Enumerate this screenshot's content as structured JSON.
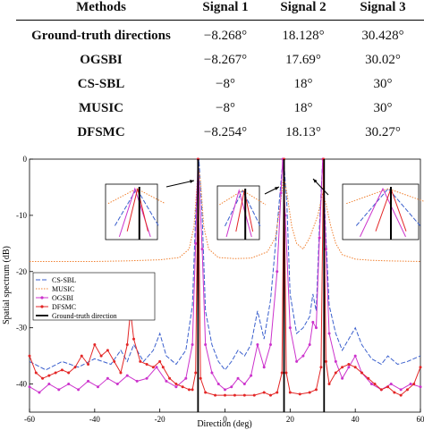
{
  "table": {
    "headers": [
      "Methods",
      "Signal 1",
      "Signal 2",
      "Signal 3"
    ],
    "rows": [
      {
        "method": "Ground-truth directions",
        "s1": "−8.268°",
        "s2": "18.128°",
        "s3": "30.428°"
      },
      {
        "method": "OGSBI",
        "s1": "−8.267°",
        "s2": "17.69°",
        "s3": "30.02°"
      },
      {
        "method": "CS-SBL",
        "s1": "−8°",
        "s2": "18°",
        "s3": "30°"
      },
      {
        "method": "MUSIC",
        "s1": "−8°",
        "s2": "18°",
        "s3": "30°"
      },
      {
        "method": "DFSMC",
        "s1": "−8.254°",
        "s2": "18.13°",
        "s3": "30.27°"
      }
    ]
  },
  "chart_data": {
    "type": "line",
    "title": "",
    "xlabel": "Direction (deg)",
    "ylabel": "Spatial spectrum (dB)",
    "xlim": [
      -60,
      60
    ],
    "ylim": [
      -45,
      0
    ],
    "xticks": [
      -60,
      -40,
      -20,
      0,
      20,
      40,
      60
    ],
    "yticks": [
      -40,
      -30,
      -20,
      -10,
      0
    ],
    "xtick_labels": [
      "-60",
      "-40",
      "-20",
      "0",
      "20",
      "40",
      "60"
    ],
    "ytick_labels": [
      "-40",
      "-30",
      "-20",
      "-10",
      "0"
    ],
    "legend_position": "left, below middle",
    "ground_truth_directions": [
      -8.268,
      18.128,
      30.428
    ],
    "series": [
      {
        "name": "CS-SBL",
        "color": "#3a5fcd",
        "style": "dashed",
        "points": [
          [
            -60,
            -36
          ],
          [
            -55,
            -37.5
          ],
          [
            -50,
            -36
          ],
          [
            -45,
            -37
          ],
          [
            -40,
            -35.5
          ],
          [
            -35,
            -36.5
          ],
          [
            -32,
            -34
          ],
          [
            -30,
            -36
          ],
          [
            -28,
            -33
          ],
          [
            -25,
            -36
          ],
          [
            -22,
            -34
          ],
          [
            -20,
            -31
          ],
          [
            -18,
            -35
          ],
          [
            -15,
            -36.5
          ],
          [
            -12,
            -34
          ],
          [
            -10,
            -26
          ],
          [
            -9,
            -10
          ],
          [
            -8,
            0
          ],
          [
            -7,
            -10
          ],
          [
            -6,
            -27
          ],
          [
            -4,
            -33
          ],
          [
            -2,
            -36
          ],
          [
            0,
            -37.5
          ],
          [
            2,
            -36
          ],
          [
            4,
            -34
          ],
          [
            6,
            -35
          ],
          [
            8,
            -33
          ],
          [
            10,
            -27
          ],
          [
            12,
            -32
          ],
          [
            14,
            -25
          ],
          [
            16,
            -12
          ],
          [
            17.5,
            -2
          ],
          [
            18,
            0
          ],
          [
            19,
            -8
          ],
          [
            20,
            -24
          ],
          [
            22,
            -31
          ],
          [
            24,
            -30
          ],
          [
            26,
            -28
          ],
          [
            27,
            -24
          ],
          [
            28,
            -27
          ],
          [
            29,
            -12
          ],
          [
            30,
            0
          ],
          [
            31,
            -14
          ],
          [
            32,
            -26
          ],
          [
            34,
            -31
          ],
          [
            36,
            -34
          ],
          [
            38,
            -32
          ],
          [
            40,
            -30
          ],
          [
            42,
            -33
          ],
          [
            45,
            -35.5
          ],
          [
            48,
            -36.5
          ],
          [
            50,
            -35
          ],
          [
            53,
            -36.5
          ],
          [
            56,
            -36
          ],
          [
            60,
            -35
          ]
        ]
      },
      {
        "name": "MUSIC",
        "color": "#f08030",
        "style": "dotted",
        "points": [
          [
            -60,
            -18.2
          ],
          [
            -50,
            -18.2
          ],
          [
            -40,
            -18.2
          ],
          [
            -30,
            -18.1
          ],
          [
            -20,
            -17.9
          ],
          [
            -14,
            -17.5
          ],
          [
            -11,
            -16
          ],
          [
            -9.5,
            -12
          ],
          [
            -8.5,
            -4
          ],
          [
            -8,
            -2
          ],
          [
            -7.5,
            -4
          ],
          [
            -6.5,
            -12
          ],
          [
            -5,
            -16
          ],
          [
            -2,
            -17.5
          ],
          [
            3,
            -17.7
          ],
          [
            8,
            -17.6
          ],
          [
            13,
            -16.5
          ],
          [
            15.5,
            -14
          ],
          [
            17,
            -8
          ],
          [
            18,
            -3
          ],
          [
            19,
            -6
          ],
          [
            20.5,
            -12
          ],
          [
            22,
            -15
          ],
          [
            24,
            -16
          ],
          [
            26,
            -14
          ],
          [
            28.5,
            -10
          ],
          [
            30,
            -6
          ],
          [
            31,
            -8
          ],
          [
            32.5,
            -12
          ],
          [
            34,
            -15
          ],
          [
            36,
            -17
          ],
          [
            40,
            -17.8
          ],
          [
            45,
            -18
          ],
          [
            50,
            -18.1
          ],
          [
            60,
            -18.2
          ]
        ]
      },
      {
        "name": "OGSBI",
        "color": "#cc33cc",
        "style": "solid-marker",
        "points": [
          [
            -60,
            -40.5
          ],
          [
            -57,
            -41.5
          ],
          [
            -54,
            -40
          ],
          [
            -51,
            -41
          ],
          [
            -48,
            -40
          ],
          [
            -45,
            -41
          ],
          [
            -42,
            -39.5
          ],
          [
            -39,
            -40.5
          ],
          [
            -36,
            -39
          ],
          [
            -33,
            -40
          ],
          [
            -30,
            -38.5
          ],
          [
            -27,
            -39.5
          ],
          [
            -24,
            -39
          ],
          [
            -21,
            -37
          ],
          [
            -18,
            -39.5
          ],
          [
            -15,
            -40.5
          ],
          [
            -12,
            -39
          ],
          [
            -10,
            -33
          ],
          [
            -9,
            -15
          ],
          [
            -8.3,
            0
          ],
          [
            -7,
            -16
          ],
          [
            -6,
            -33
          ],
          [
            -4,
            -38
          ],
          [
            -2,
            -40
          ],
          [
            0,
            -41
          ],
          [
            2,
            -40.5
          ],
          [
            4,
            -39
          ],
          [
            6,
            -40
          ],
          [
            8,
            -38.5
          ],
          [
            10,
            -33
          ],
          [
            12,
            -37
          ],
          [
            14,
            -33
          ],
          [
            16,
            -20
          ],
          [
            17.2,
            -6
          ],
          [
            17.7,
            0
          ],
          [
            18.5,
            -10
          ],
          [
            20,
            -30
          ],
          [
            22,
            -36
          ],
          [
            24,
            -35
          ],
          [
            26,
            -33
          ],
          [
            27,
            -29
          ],
          [
            28,
            -30
          ],
          [
            29,
            -14
          ],
          [
            30,
            0
          ],
          [
            31,
            -16
          ],
          [
            32,
            -31
          ],
          [
            34,
            -36
          ],
          [
            36,
            -39
          ],
          [
            38,
            -37
          ],
          [
            40,
            -35
          ],
          [
            42,
            -38
          ],
          [
            45,
            -40
          ],
          [
            48,
            -41
          ],
          [
            51,
            -40
          ],
          [
            54,
            -41
          ],
          [
            57,
            -40
          ],
          [
            60,
            -40.5
          ]
        ]
      },
      {
        "name": "DFSMC",
        "color": "#e32626",
        "style": "solid-marker",
        "points": [
          [
            -60,
            -35
          ],
          [
            -58,
            -38
          ],
          [
            -56,
            -39
          ],
          [
            -54,
            -38.5
          ],
          [
            -52,
            -38
          ],
          [
            -50,
            -37.5
          ],
          [
            -48,
            -38
          ],
          [
            -46,
            -37
          ],
          [
            -44,
            -35
          ],
          [
            -42,
            -36.5
          ],
          [
            -40,
            -33
          ],
          [
            -38,
            -35
          ],
          [
            -36,
            -34
          ],
          [
            -34,
            -36
          ],
          [
            -32,
            -38
          ],
          [
            -30,
            -33
          ],
          [
            -29,
            -27
          ],
          [
            -28,
            -32
          ],
          [
            -26,
            -36
          ],
          [
            -24,
            -36.5
          ],
          [
            -22,
            -37
          ],
          [
            -20,
            -36
          ],
          [
            -19,
            -37
          ],
          [
            -17,
            -39
          ],
          [
            -15,
            -40
          ],
          [
            -13,
            -40.5
          ],
          [
            -11,
            -41
          ],
          [
            -10,
            -41
          ],
          [
            -9,
            -38
          ],
          [
            -8.25,
            0
          ],
          [
            -7.5,
            -39
          ],
          [
            -6,
            -41.5
          ],
          [
            -3,
            -42
          ],
          [
            0,
            -42
          ],
          [
            3,
            -42
          ],
          [
            6,
            -42
          ],
          [
            9,
            -42
          ],
          [
            12,
            -41.5
          ],
          [
            14,
            -42
          ],
          [
            16,
            -41.5
          ],
          [
            17.5,
            -38
          ],
          [
            18.13,
            0
          ],
          [
            18.8,
            -38
          ],
          [
            20,
            -41.5
          ],
          [
            23,
            -41.8
          ],
          [
            26,
            -41.5
          ],
          [
            28,
            -41
          ],
          [
            29.5,
            -37
          ],
          [
            30.27,
            0
          ],
          [
            31,
            -36
          ],
          [
            32,
            -40
          ],
          [
            34,
            -38
          ],
          [
            36,
            -37
          ],
          [
            38,
            -36.5
          ],
          [
            40,
            -37
          ],
          [
            42,
            -38
          ],
          [
            44,
            -39
          ],
          [
            46,
            -40
          ],
          [
            48,
            -41
          ],
          [
            50,
            -40.5
          ],
          [
            52,
            -41.5
          ],
          [
            54,
            -42
          ],
          [
            56,
            -41
          ],
          [
            58,
            -40
          ],
          [
            60,
            -37
          ]
        ]
      }
    ],
    "ground_truth_legend": {
      "name": "Ground-truth direction",
      "color": "#000000"
    }
  }
}
